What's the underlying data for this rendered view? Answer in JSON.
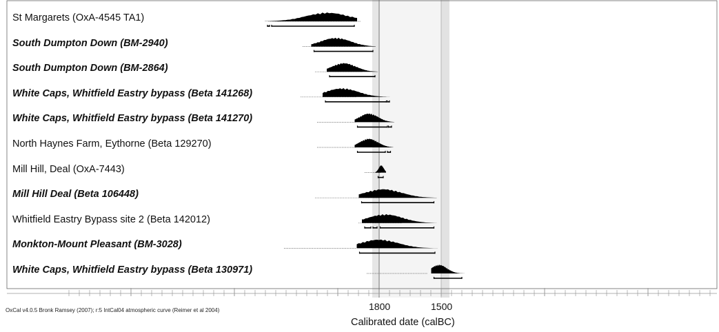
{
  "chart_data": {
    "type": "calibrated-radiocarbon-multiplot",
    "xlabel": "Calibrated date (calBC)",
    "credit": "OxCal v4.0.5 Bronk Ramsey (2007); r:5 IntCal04 atmospheric curve (Reimer et al 2004)",
    "tick_labels": [
      {
        "value": 1800,
        "label": "1800"
      },
      {
        "value": 1500,
        "label": "1500"
      }
    ],
    "highlight_band": [
      1800,
      1500
    ],
    "series": [
      {
        "label": "St Margarets (OxA-4545 TA1)",
        "emphasis": false,
        "range": [
          2335,
          1890
        ],
        "peak": 2050,
        "ranges_95": [
          [
            2340,
            2330
          ],
          [
            2320,
            1920
          ]
        ]
      },
      {
        "label": "South Dumpton Down (BM-2940)",
        "emphasis": true,
        "range": [
          2170,
          1870
        ],
        "peak": 2010,
        "ranges_95": [
          [
            2115,
            1830
          ]
        ]
      },
      {
        "label": "South Dumpton Down (BM-2864)",
        "emphasis": true,
        "range": [
          2110,
          1880
        ],
        "peak": 1970,
        "ranges_95": [
          [
            2040,
            1820
          ]
        ]
      },
      {
        "label": "White Caps, Whitfield Eastry bypass (Beta 141268)",
        "emphasis": true,
        "range": [
          2180,
          1910
        ],
        "peak": 1980,
        "ranges_95": [
          [
            2060,
            1765
          ],
          [
            1760,
            1750
          ]
        ]
      },
      {
        "label": "White Caps, Whitfield Eastry bypass (Beta 141270)",
        "emphasis": true,
        "range": [
          2100,
          1910
        ],
        "peak": 1850,
        "ranges_95": [
          [
            1905,
            1760
          ],
          [
            1755,
            1740
          ]
        ]
      },
      {
        "label": "North Haynes Farm, Eythorne (Beta 129270)",
        "emphasis": false,
        "range": [
          2100,
          1910
        ],
        "peak": 1850,
        "ranges_95": [
          [
            1905,
            1770
          ],
          [
            1760,
            1745
          ]
        ]
      },
      {
        "label": "Mill Hill, Deal (OxA-7443)",
        "emphasis": false,
        "range": [
          1870,
          1790
        ],
        "peak": 1790,
        "ranges_95": [
          [
            1805,
            1780
          ]
        ]
      },
      {
        "label": "Mill Hill Deal (Beta 106448)",
        "emphasis": true,
        "range": [
          2110,
          1800
        ],
        "peak": 1780,
        "ranges_95": [
          [
            1885,
            1535
          ]
        ]
      },
      {
        "label": "Whitfield Eastry Bypass site 2 (Beta 142012)",
        "emphasis": false,
        "range": [
          1900,
          1690
        ],
        "peak": 1770,
        "ranges_95": [
          [
            1870,
            1840
          ],
          [
            1830,
            1810
          ],
          [
            1795,
            1535
          ]
        ]
      },
      {
        "label": "Monkton-Mount Pleasant (BM-3028)",
        "emphasis": true,
        "range": [
          2260,
          1910
        ],
        "peak": 1800,
        "ranges_95": [
          [
            1895,
            1530
          ]
        ]
      },
      {
        "label": "White Caps, Whitfield Eastry bypass (Beta 130971)",
        "emphasis": true,
        "range": [
          1860,
          1565
        ],
        "peak": 1510,
        "ranges_95": [
          [
            1535,
            1400
          ]
        ]
      }
    ]
  }
}
